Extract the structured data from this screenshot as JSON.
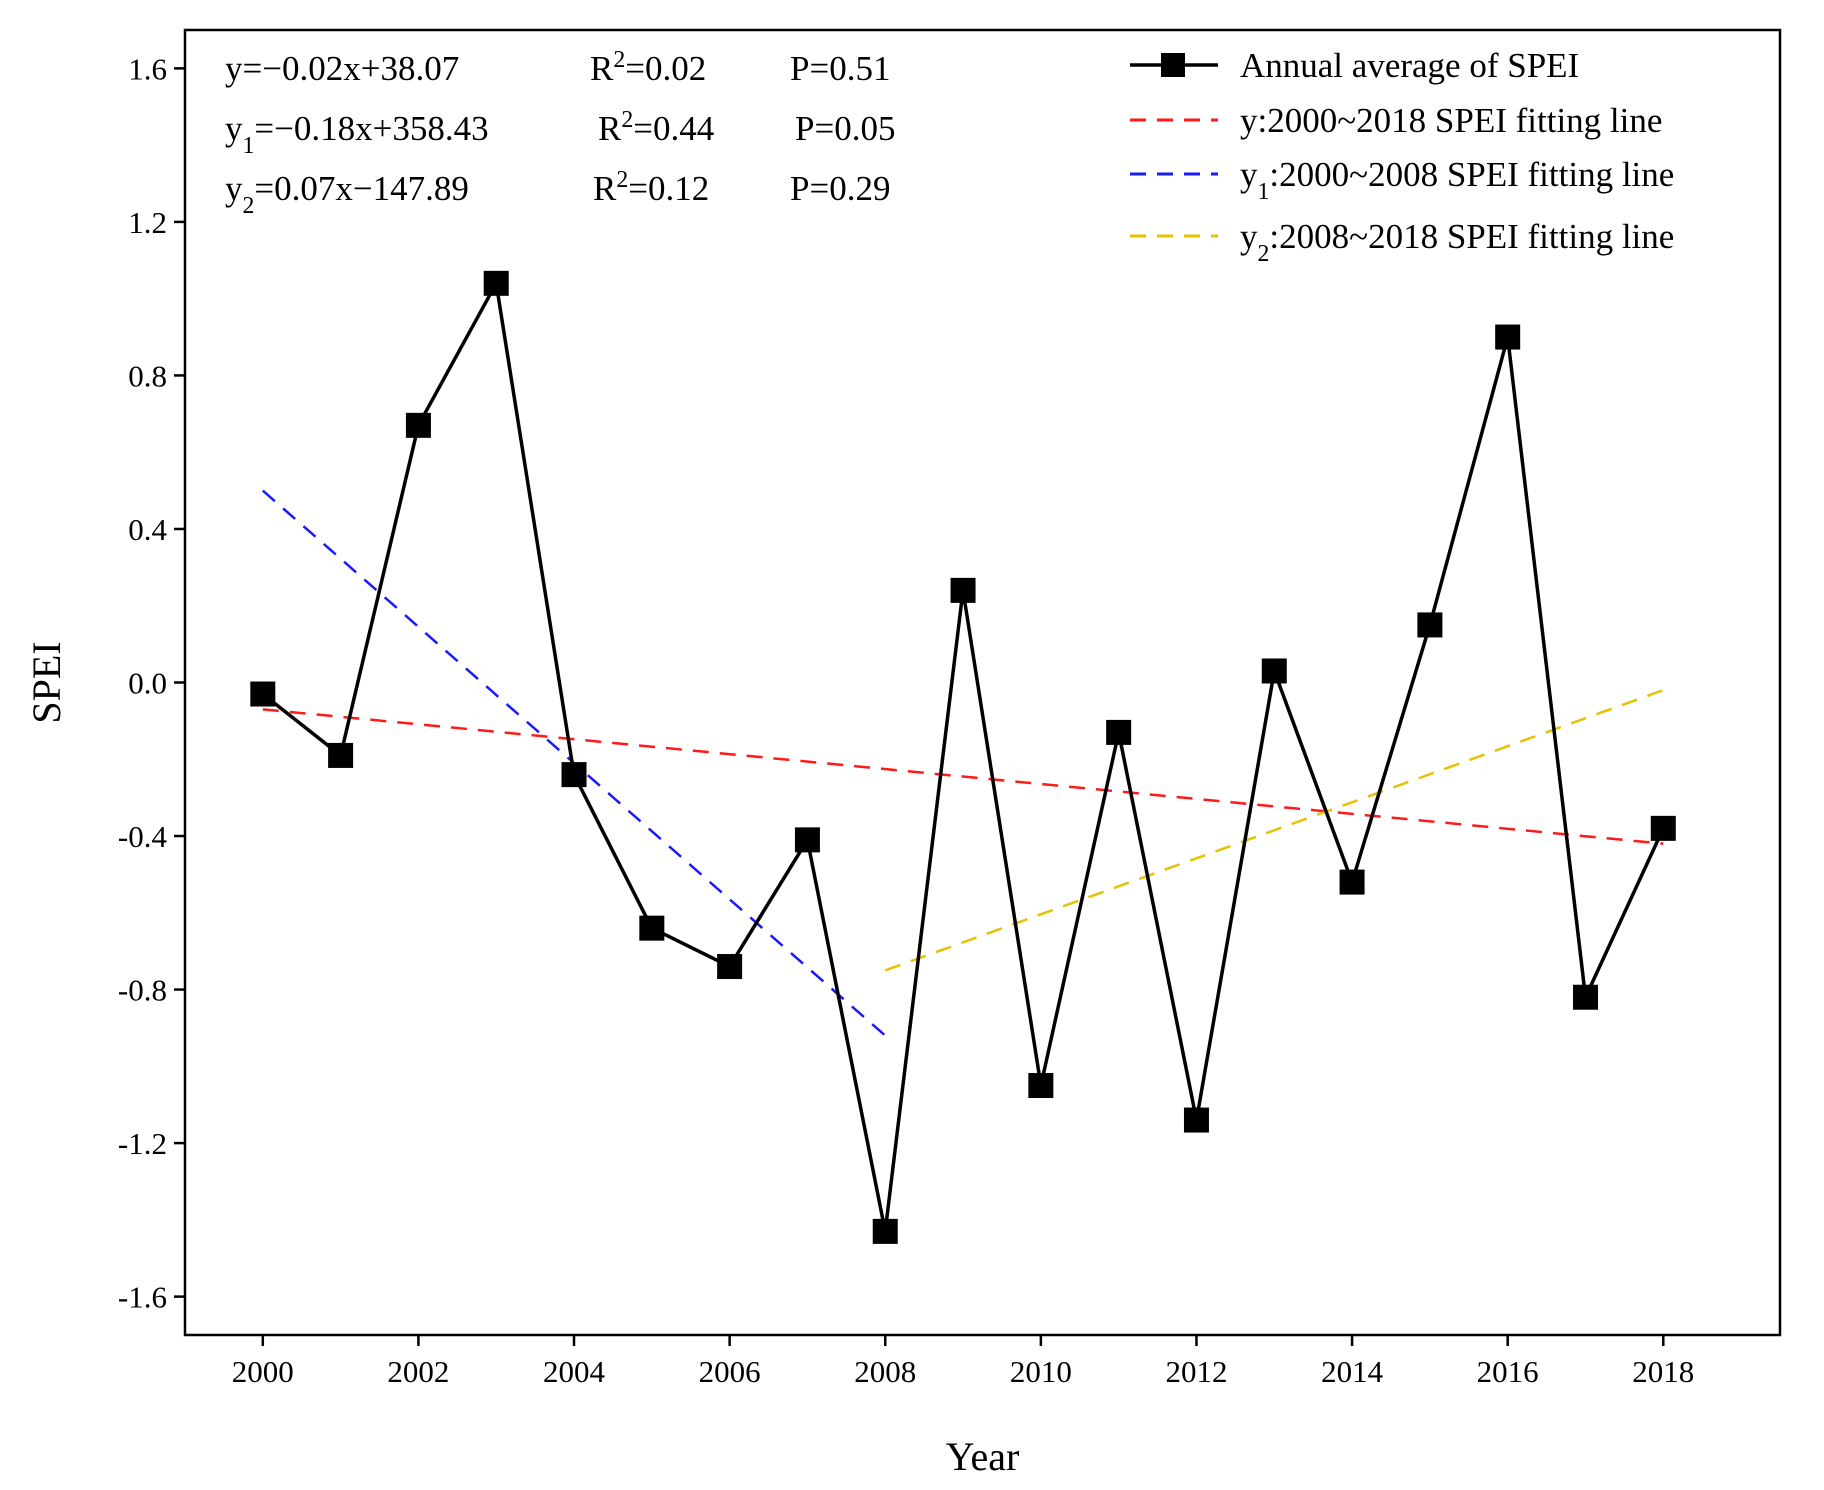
{
  "chart_data": {
    "type": "line",
    "xlabel": "Year",
    "ylabel": "SPEI",
    "xlim": [
      1999,
      2019.5
    ],
    "ylim": [
      -1.7,
      1.7
    ],
    "x_ticks": [
      2000,
      2002,
      2004,
      2006,
      2008,
      2010,
      2012,
      2014,
      2016,
      2018
    ],
    "x_tick_labels": [
      "2000",
      "2002",
      "2004",
      "2006",
      "2008",
      "2010",
      "2012",
      "2014",
      "2016",
      "2018"
    ],
    "y_ticks": [
      -1.6,
      -1.2,
      -0.8,
      -0.4,
      0.0,
      0.4,
      0.8,
      1.2,
      1.6
    ],
    "y_tick_labels": [
      "-1.6",
      "-1.2",
      "-0.8",
      "-0.4",
      "0.0",
      "0.4",
      "0.8",
      "1.2",
      "1.6"
    ],
    "grid": false,
    "legend_position": "top-right",
    "series": [
      {
        "name": "Annual average of SPEI",
        "kind": "line-marker",
        "color": "#000000",
        "marker": "square",
        "x": [
          2000,
          2001,
          2002,
          2003,
          2004,
          2005,
          2006,
          2007,
          2008,
          2009,
          2010,
          2011,
          2012,
          2013,
          2014,
          2015,
          2016,
          2017,
          2018
        ],
        "y": [
          -0.03,
          -0.19,
          0.67,
          1.04,
          -0.24,
          -0.64,
          -0.74,
          -0.41,
          -1.43,
          0.24,
          -1.05,
          -0.13,
          -1.14,
          0.03,
          -0.52,
          0.15,
          0.9,
          -0.82,
          -0.38
        ]
      },
      {
        "name": "y:2000~2018 SPEI fitting line",
        "name_parts": [
          {
            "t": "y:2000~2018 SPEI fitting line"
          }
        ],
        "kind": "dashed-line",
        "color": "#ff1a1a",
        "x": [
          2000,
          2018
        ],
        "y": [
          -0.07,
          -0.42
        ]
      },
      {
        "name": "y1:2000~2008 SPEI fitting line",
        "name_parts": [
          {
            "t": "y"
          },
          {
            "t": "1",
            "sub": true
          },
          {
            "t": ":2000~2008 SPEI fitting line"
          }
        ],
        "kind": "dashed-line",
        "color": "#1a1aff",
        "x": [
          2000,
          2008
        ],
        "y": [
          0.5,
          -0.92
        ]
      },
      {
        "name": "y2:2008~2018 SPEI fitting line",
        "name_parts": [
          {
            "t": "y"
          },
          {
            "t": "2",
            "sub": true
          },
          {
            "t": ":2008~2018 SPEI fitting line"
          }
        ],
        "kind": "dashed-line",
        "color": "#e6c200",
        "x": [
          2008,
          2018
        ],
        "y": [
          -0.75,
          -0.02
        ]
      }
    ],
    "annotations": [
      [
        [
          {
            "t": "y=−0.02x+38.07"
          }
        ],
        [
          {
            "t": "R"
          },
          {
            "t": "2",
            "sup": true
          },
          {
            "t": "=0.02"
          }
        ],
        [
          {
            "t": "P=0.51"
          }
        ]
      ],
      [
        [
          {
            "t": "y"
          },
          {
            "t": "1",
            "sub": true
          },
          {
            "t": "=−0.18x+358.43"
          }
        ],
        [
          {
            "t": "R"
          },
          {
            "t": "2",
            "sup": true
          },
          {
            "t": "=0.44"
          }
        ],
        [
          {
            "t": "P=0.05"
          }
        ]
      ],
      [
        [
          {
            "t": "y"
          },
          {
            "t": "2",
            "sub": true
          },
          {
            "t": "=0.07x−147.89"
          }
        ],
        [
          {
            "t": "R"
          },
          {
            "t": "2",
            "sup": true
          },
          {
            "t": "=0.12"
          }
        ],
        [
          {
            "t": "P=0.29"
          }
        ]
      ]
    ]
  }
}
